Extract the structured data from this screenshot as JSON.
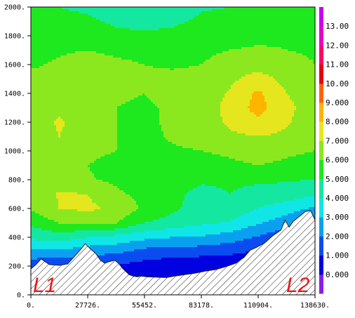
{
  "chart_data": {
    "type": "heatmap",
    "title": "",
    "xlabel": "",
    "ylabel": "",
    "xlim": [
      0,
      138630
    ],
    "ylim": [
      0,
      2000
    ],
    "x_ticks": [
      {
        "value": 0,
        "label": "0."
      },
      {
        "value": 27726,
        "label": "27726."
      },
      {
        "value": 55452,
        "label": "55452."
      },
      {
        "value": 83178,
        "label": "83178."
      },
      {
        "value": 110904,
        "label": "110904."
      },
      {
        "value": 138630,
        "label": "138630."
      }
    ],
    "y_ticks": [
      {
        "value": 0,
        "label": "0."
      },
      {
        "value": 200,
        "label": "200."
      },
      {
        "value": 400,
        "label": "400."
      },
      {
        "value": 600,
        "label": "600."
      },
      {
        "value": 800,
        "label": "800."
      },
      {
        "value": 1000,
        "label": "1000."
      },
      {
        "value": 1200,
        "label": "1200."
      },
      {
        "value": 1400,
        "label": "1400."
      },
      {
        "value": 1600,
        "label": "1600."
      },
      {
        "value": 1800,
        "label": "1800."
      },
      {
        "value": 2000,
        "label": "2000."
      }
    ],
    "colorbar": {
      "levels": [
        -1,
        0,
        1,
        2,
        3,
        4,
        5,
        6,
        7,
        8,
        9,
        10,
        11,
        12,
        13,
        14
      ],
      "labels": [
        "0.000",
        "1.000",
        "2.000",
        "3.000",
        "4.000",
        "5.000",
        "6.000",
        "7.000",
        "8.000",
        "9.000",
        "10.00",
        "11.00",
        "12.00",
        "13.00"
      ],
      "colors": [
        "#8a1ee6",
        "#0000e0",
        "#0a4cf0",
        "#0aa0f0",
        "#10e6e6",
        "#14e8a0",
        "#1ee81e",
        "#8ce81e",
        "#e6e61e",
        "#ffb400",
        "#ff6400",
        "#e60000",
        "#ff0066",
        "#e600c8",
        "#c800f0"
      ]
    },
    "field": {
      "x": [
        0,
        13863,
        27726,
        41589,
        55452,
        69315,
        83178,
        97041,
        110904,
        124767,
        138630
      ],
      "y": [
        0,
        100,
        200,
        300,
        400,
        500,
        600,
        700,
        800,
        900,
        1000,
        1100,
        1200,
        1300,
        1400,
        1500,
        1600,
        1700,
        1800,
        1900,
        2000
      ],
      "z": [
        [
          0,
          0,
          0,
          0,
          0,
          0,
          0,
          0,
          0,
          0,
          0
        ],
        [
          0,
          0,
          0,
          0,
          0,
          0,
          0,
          0,
          0,
          0,
          0
        ],
        [
          1.2,
          1.0,
          0.8,
          0.9,
          0.6,
          0.3,
          0.2,
          0.3,
          0.2,
          0.2,
          0.2
        ],
        [
          2.8,
          2.8,
          2.4,
          2.2,
          1.6,
          1.5,
          1.4,
          1.2,
          0.9,
          0.5,
          0.4
        ],
        [
          4.2,
          4.5,
          4.0,
          3.7,
          3.3,
          3.0,
          2.9,
          2.5,
          1.9,
          1.2,
          0.8
        ],
        [
          5.3,
          6.0,
          6.2,
          6.0,
          5.0,
          4.6,
          4.2,
          3.9,
          3.1,
          2.4,
          1.6
        ],
        [
          6.1,
          7.0,
          7.2,
          6.8,
          5.8,
          5.2,
          4.5,
          4.7,
          4.0,
          3.5,
          2.8
        ],
        [
          6.2,
          7.1,
          7.0,
          6.2,
          5.7,
          5.3,
          4.6,
          5.0,
          4.6,
          4.5,
          4.2
        ],
        [
          6.1,
          6.4,
          6.1,
          5.8,
          5.4,
          5.7,
          5.2,
          5.2,
          5.2,
          5.1,
          5.0
        ],
        [
          6.3,
          6.4,
          6.0,
          5.6,
          5.3,
          5.6,
          5.6,
          5.8,
          6.0,
          5.8,
          5.6
        ],
        [
          6.4,
          6.7,
          6.3,
          6.0,
          5.7,
          5.9,
          6.0,
          6.2,
          6.4,
          6.2,
          6.0
        ],
        [
          6.5,
          7.0,
          6.6,
          6.0,
          5.8,
          6.1,
          6.3,
          6.8,
          7.0,
          6.8,
          6.4
        ],
        [
          6.5,
          7.1,
          6.6,
          6.0,
          5.9,
          6.1,
          6.4,
          7.2,
          7.8,
          7.1,
          6.5
        ],
        [
          6.5,
          6.8,
          6.4,
          6.0,
          5.9,
          6.1,
          6.5,
          7.3,
          8.4,
          7.2,
          6.6
        ],
        [
          6.4,
          6.4,
          6.3,
          6.1,
          6.0,
          6.2,
          6.4,
          7.1,
          8.2,
          7.0,
          6.5
        ],
        [
          6.2,
          6.3,
          6.5,
          6.3,
          6.1,
          6.2,
          6.2,
          6.8,
          7.4,
          6.7,
          6.3
        ],
        [
          5.9,
          6.1,
          6.4,
          6.2,
          6.0,
          5.9,
          6.0,
          6.4,
          6.6,
          6.3,
          6.0
        ],
        [
          5.7,
          5.9,
          6.0,
          5.8,
          5.7,
          5.6,
          5.8,
          6.0,
          6.1,
          6.0,
          5.9
        ],
        [
          5.5,
          5.6,
          5.6,
          5.3,
          5.2,
          5.3,
          5.6,
          5.7,
          5.8,
          5.9,
          5.8
        ],
        [
          5.3,
          5.3,
          5.2,
          4.8,
          4.6,
          4.8,
          5.2,
          5.3,
          5.5,
          5.6,
          5.5
        ],
        [
          5.1,
          5.0,
          4.8,
          4.4,
          4.1,
          4.3,
          4.9,
          5.0,
          5.2,
          5.3,
          5.2
        ]
      ]
    },
    "terrain": {
      "x": [
        0,
        2500,
        5000,
        9000,
        14000,
        18000,
        24000,
        26500,
        29000,
        31500,
        34000,
        36000,
        38000,
        41000,
        43000,
        45000,
        48000,
        50000,
        52000,
        53500,
        57000,
        62000,
        66000,
        70000,
        75000,
        80000,
        85000,
        90000,
        95000,
        100000,
        104000,
        107000,
        110000,
        114000,
        118000,
        122000,
        124000,
        126000,
        128000,
        131000,
        134000,
        136500,
        138630
      ],
      "y": [
        180,
        210,
        250,
        210,
        205,
        215,
        310,
        355,
        320,
        290,
        240,
        220,
        230,
        240,
        215,
        180,
        140,
        130,
        125,
        130,
        125,
        122,
        120,
        130,
        140,
        150,
        165,
        175,
        195,
        220,
        260,
        310,
        330,
        360,
        410,
        450,
        520,
        470,
        510,
        545,
        580,
        585,
        520
      ]
    },
    "annotations": [
      "L1",
      "L2"
    ]
  }
}
